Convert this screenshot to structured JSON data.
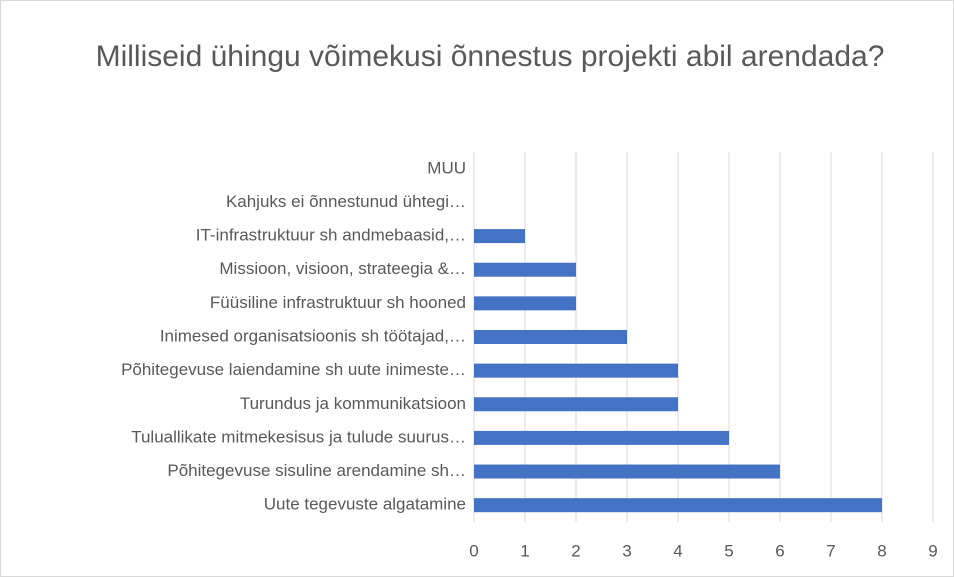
{
  "chart_data": {
    "type": "barh",
    "title": "Milliseid ühingu võimekusi õnnestus projekti abil arendada?",
    "categories": [
      "MUU",
      "Kahjuks ei õnnestunud ühtegi…",
      "IT-infrastruktuur sh andmebaasid,…",
      "Missioon, visioon, strateegia &…",
      "Füüsiline infrastruktuur sh hooned",
      "Inimesed organisatsioonis sh töötajad,…",
      "Põhitegevuse laiendamine sh uute inimeste…",
      "Turundus ja kommunikatsioon",
      "Tuluallikate mitmekesisus ja tulude suurus…",
      "Põhitegevuse sisuline arendamine sh…",
      "Uute tegevuste algatamine"
    ],
    "values": [
      0,
      0,
      1,
      2,
      2,
      3,
      4,
      4,
      5,
      6,
      8
    ],
    "color": "#4472c4",
    "xlim": [
      0,
      9
    ],
    "xticks": [
      0,
      1,
      2,
      3,
      4,
      5,
      6,
      7,
      8,
      9
    ],
    "grid": true
  }
}
